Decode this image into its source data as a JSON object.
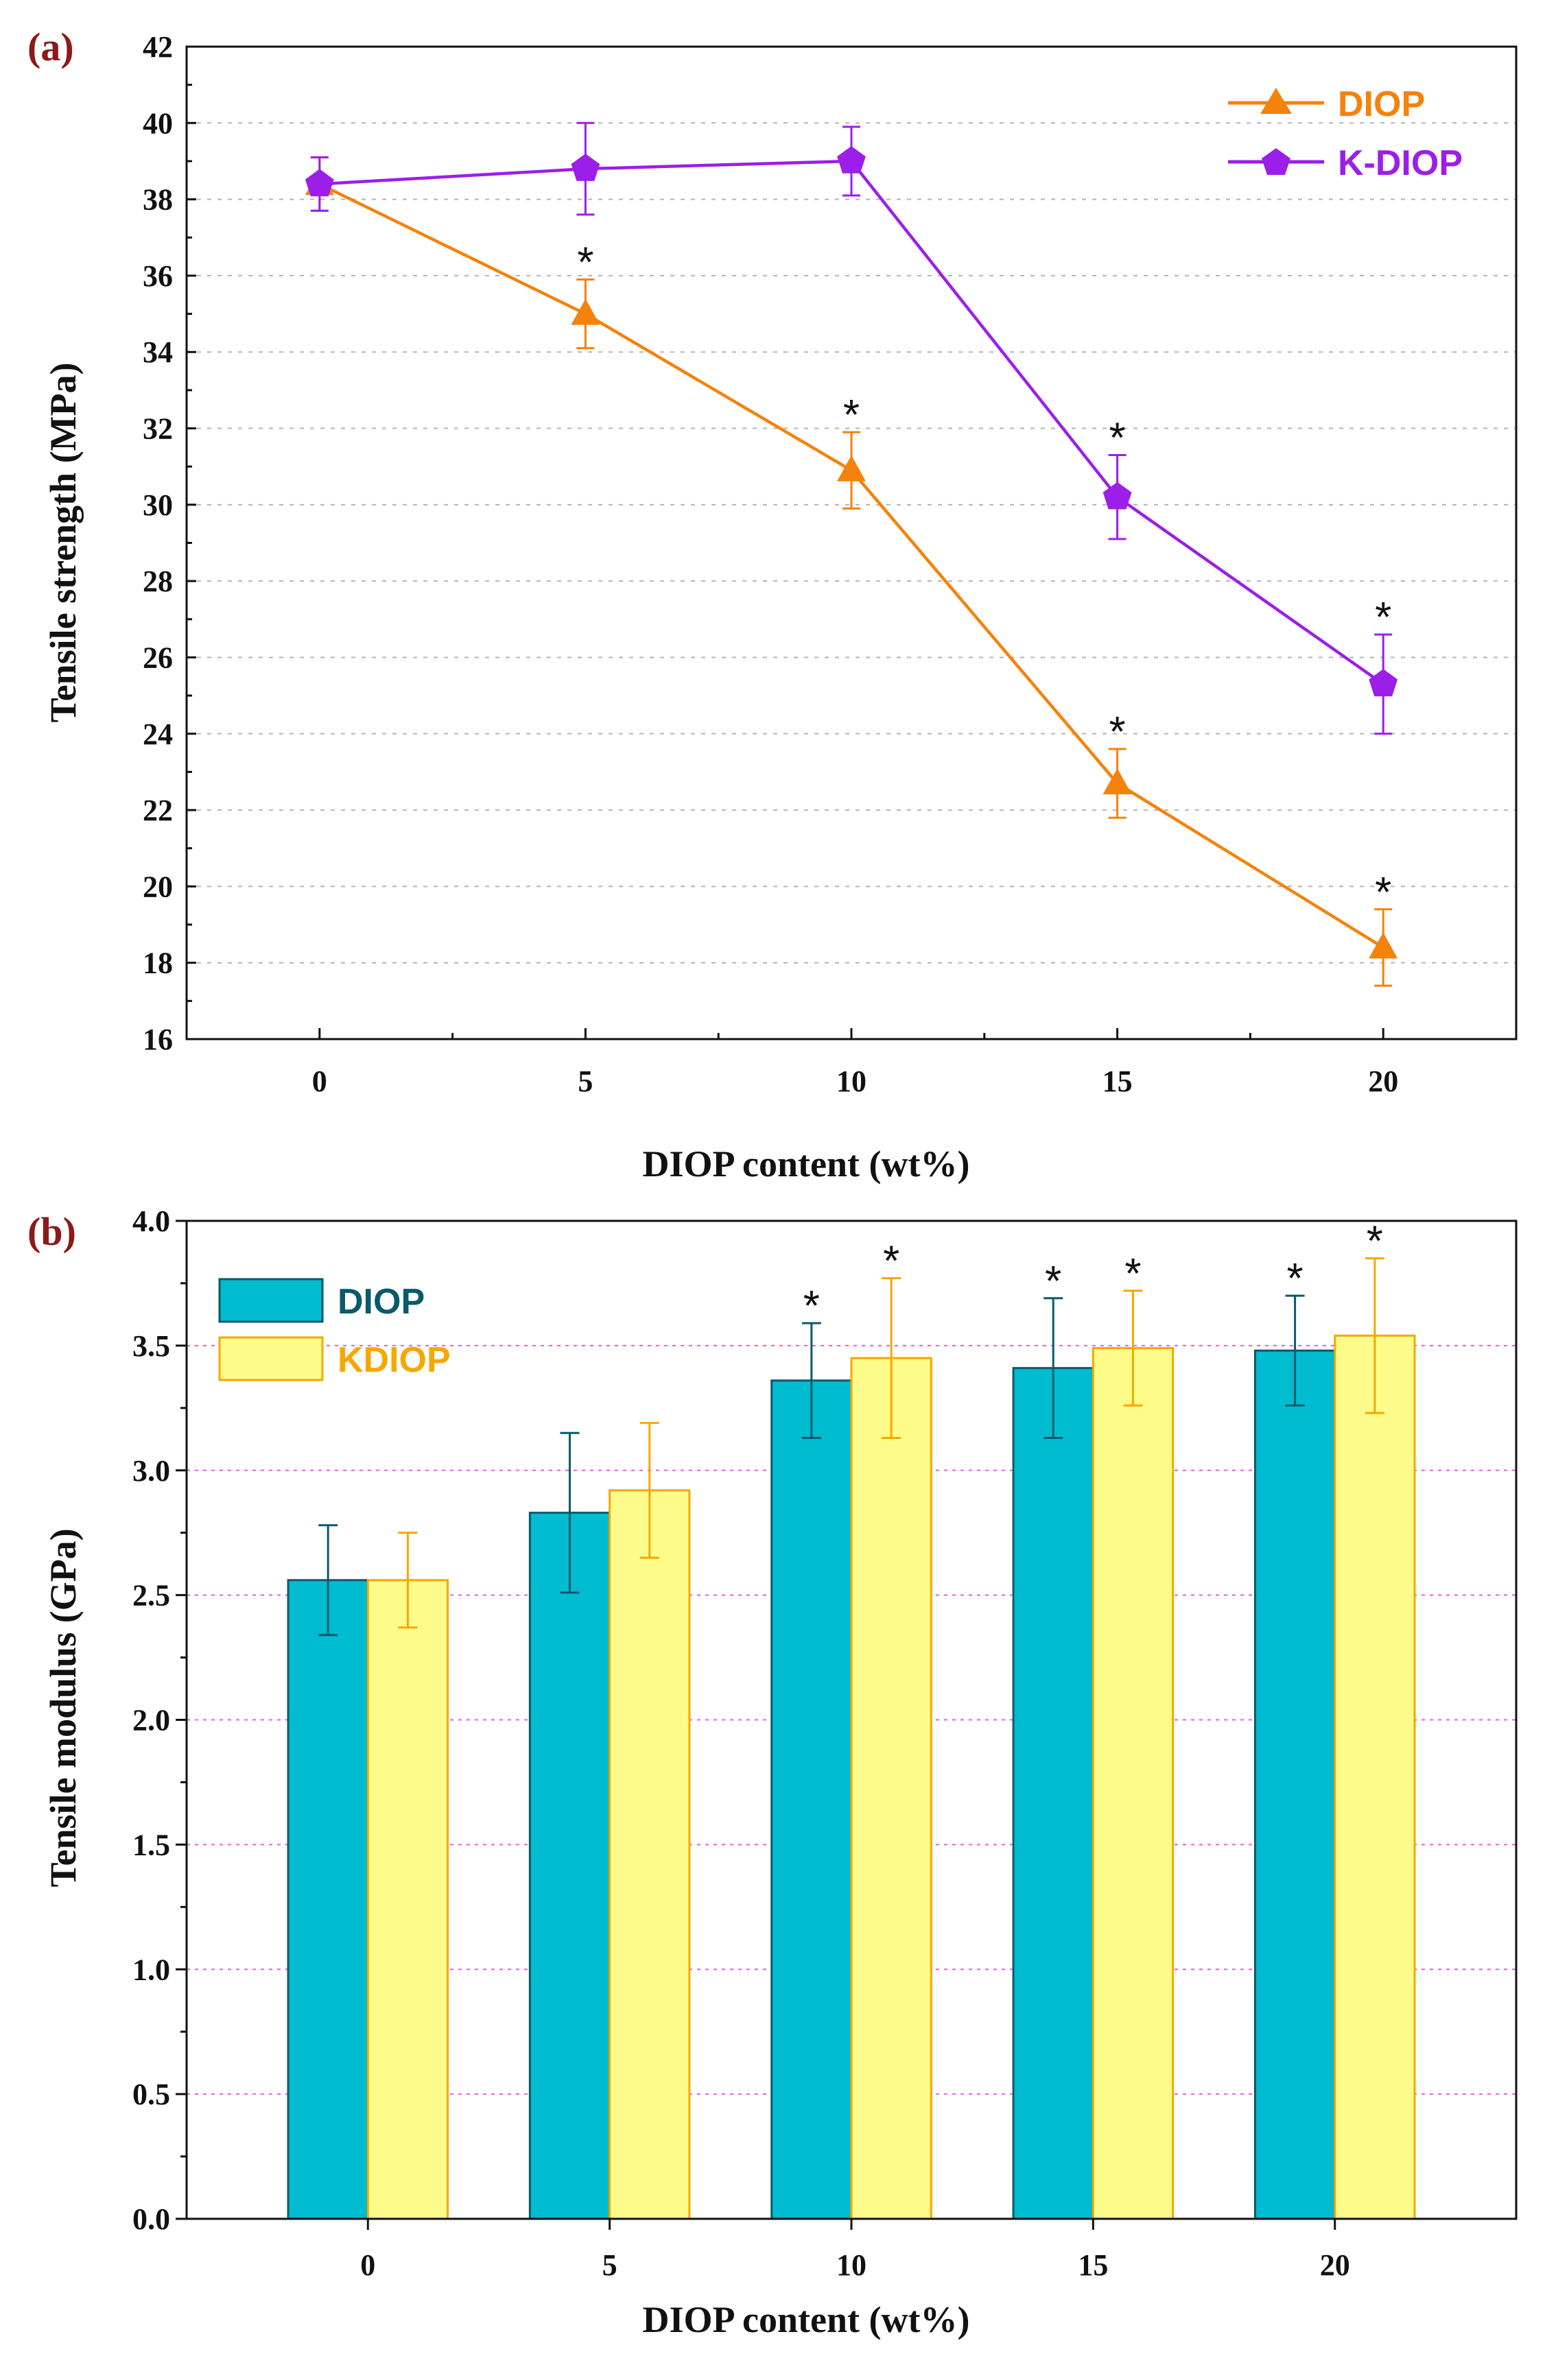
{
  "chart_data": [
    {
      "panel_label": "(a)",
      "type": "line",
      "xlabel": "DIOP content (wt%)",
      "ylabel": "Tensile strength (MPa)",
      "x": [
        0,
        5,
        10,
        15,
        20
      ],
      "xticks": [
        "0",
        "5",
        "10",
        "15",
        "20"
      ],
      "xlim": [
        -2.5,
        22.5
      ],
      "ylim": [
        16,
        42
      ],
      "yticks": [
        "16",
        "18",
        "20",
        "22",
        "24",
        "26",
        "28",
        "30",
        "32",
        "34",
        "36",
        "38",
        "40",
        "42"
      ],
      "grid": true,
      "legend_position": "top-right",
      "series": [
        {
          "name": "DIOP",
          "color": "#f5820a",
          "marker": "triangle",
          "values": [
            38.4,
            35.0,
            30.9,
            22.7,
            18.4
          ],
          "errors": [
            0.7,
            0.9,
            1.0,
            0.9,
            1.0
          ],
          "significance": [
            "",
            "*",
            "*",
            "*",
            "*"
          ]
        },
        {
          "name": "K-DIOP",
          "color": "#9b1fe8",
          "marker": "pentagon",
          "values": [
            38.4,
            38.8,
            39.0,
            30.2,
            25.3
          ],
          "errors": [
            0.7,
            1.2,
            0.9,
            1.1,
            1.3
          ],
          "significance": [
            "",
            "",
            "",
            "*",
            "*"
          ]
        }
      ]
    },
    {
      "panel_label": "(b)",
      "type": "bar",
      "xlabel": "DIOP content (wt%)",
      "ylabel": "Tensile modulus (GPa)",
      "categories": [
        "0",
        "5",
        "10",
        "15",
        "20"
      ],
      "ylim": [
        0.0,
        4.0
      ],
      "yticks": [
        "0.0",
        "0.5",
        "1.0",
        "1.5",
        "2.0",
        "2.5",
        "3.0",
        "3.5",
        "4.0"
      ],
      "grid": true,
      "legend_position": "top-left",
      "series": [
        {
          "name": "DIOP",
          "color": "#00bcd0",
          "edge_color": "#0a5a6a",
          "values": [
            2.56,
            2.83,
            3.36,
            3.41,
            3.48
          ],
          "errors": [
            0.22,
            0.32,
            0.23,
            0.28,
            0.22
          ],
          "significance": [
            "",
            "",
            "*",
            "*",
            "*"
          ]
        },
        {
          "name": "KDIOP",
          "color": "#fdfb8a",
          "edge_color": "#f5a800",
          "values": [
            2.56,
            2.92,
            3.45,
            3.49,
            3.54
          ],
          "errors": [
            0.19,
            0.27,
            0.32,
            0.23,
            0.31
          ],
          "significance": [
            "",
            "",
            "*",
            "*",
            "*"
          ]
        }
      ]
    }
  ]
}
